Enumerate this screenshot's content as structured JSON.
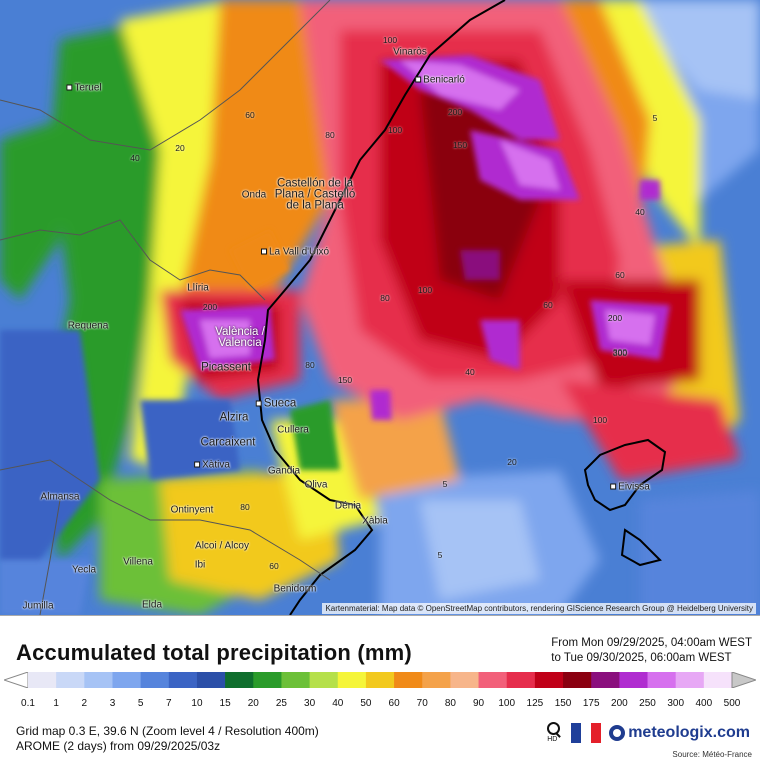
{
  "map": {
    "attribution": "Kartenmaterial: Map data © OpenStreetMap contributors, rendering GIScience Research Group @ Heidelberg University",
    "cities": [
      "Teruel",
      "Vinaròs",
      "Benicarló",
      "Castellón de la Plana / Castelló de la Plana",
      "Onda",
      "La Vall d'Uixó",
      "Llíria",
      "Requena",
      "València / Valencia",
      "Picassent",
      "Sueca",
      "Alzira",
      "Cullera",
      "Carcaixent",
      "Xàtiva",
      "Gandia",
      "Oliva",
      "Almansa",
      "Ontinyent",
      "Dénia",
      "Xàbia",
      "Alcoi / Alcoy",
      "Villena",
      "Ibi",
      "Yecla",
      "Benidorm",
      "Elda",
      "Jumilla",
      "Eivissa"
    ],
    "precip_labels": [
      "100",
      "5",
      "40",
      "20",
      "60",
      "80",
      "150",
      "200",
      "300",
      "100",
      "80",
      "60",
      "40",
      "20",
      "5",
      "200",
      "150",
      "100",
      "60",
      "40",
      "5",
      "80",
      "60",
      "200",
      "300",
      "100",
      "80"
    ]
  },
  "legend": {
    "title": "Accumulated total precipitation (mm)",
    "period_from": "From Mon 09/29/2025, 04:00am WEST",
    "period_to": "to Tue 09/30/2025, 06:00am WEST",
    "scale": [
      {
        "v": "0.1",
        "c": "#e8e8f6"
      },
      {
        "v": "1",
        "c": "#c9d8f7"
      },
      {
        "v": "2",
        "c": "#a6c3f5"
      },
      {
        "v": "3",
        "c": "#7ea6ee"
      },
      {
        "v": "5",
        "c": "#5684dc"
      },
      {
        "v": "7",
        "c": "#3b64c4"
      },
      {
        "v": "10",
        "c": "#2b4fa8"
      },
      {
        "v": "15",
        "c": "#0f6e2d"
      },
      {
        "v": "20",
        "c": "#2a9b2a"
      },
      {
        "v": "25",
        "c": "#6cc038"
      },
      {
        "v": "30",
        "c": "#b5e04a"
      },
      {
        "v": "40",
        "c": "#f5f53a"
      },
      {
        "v": "50",
        "c": "#f2c91e"
      },
      {
        "v": "60",
        "c": "#f08a18"
      },
      {
        "v": "70",
        "c": "#f4a24a"
      },
      {
        "v": "80",
        "c": "#f7b58a"
      },
      {
        "v": "90",
        "c": "#f2607a"
      },
      {
        "v": "100",
        "c": "#e62d4c"
      },
      {
        "v": "125",
        "c": "#c00018"
      },
      {
        "v": "150",
        "c": "#8a0010"
      },
      {
        "v": "175",
        "c": "#8a0f7d"
      },
      {
        "v": "200",
        "c": "#b02cd0"
      },
      {
        "v": "250",
        "c": "#d670ee"
      },
      {
        "v": "300",
        "c": "#e7a8f5"
      },
      {
        "v": "400",
        "c": "#f6e2fb"
      },
      {
        "v": "500",
        "c": "#c8c8c8"
      }
    ],
    "grid_line1": "Grid map 0.3 E, 39.6 N (Zoom level 4 / Resolution 400m)",
    "grid_line2": "AROME (2 days) from 09/29/2025/03z",
    "brand": "meteologix.com",
    "hd": "HD",
    "source": "Source: Météo-France"
  },
  "colors": {
    "sea": "#3a6fc6",
    "coast": "#000000",
    "border": "#555555"
  }
}
